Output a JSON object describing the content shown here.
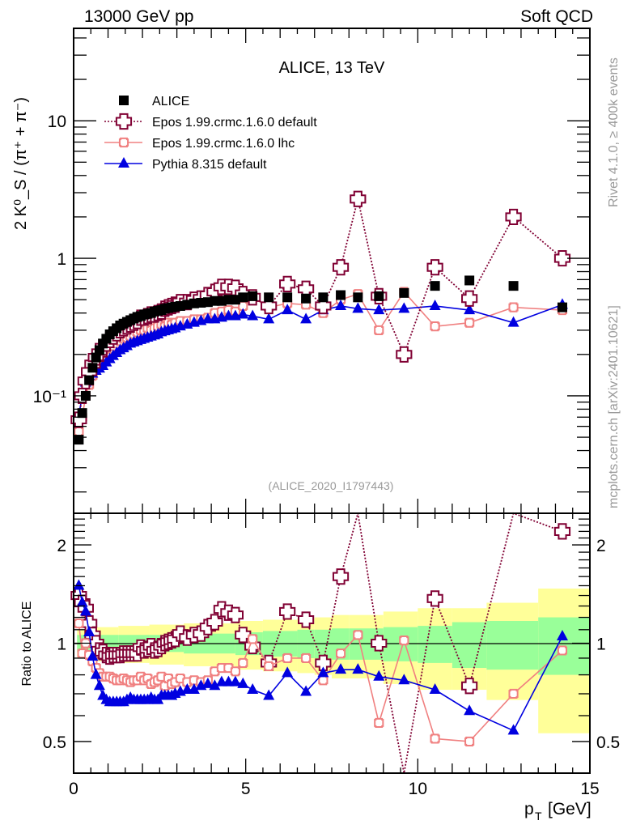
{
  "header": {
    "left": "13000 GeV pp",
    "right": "Soft QCD"
  },
  "side_labels": {
    "rivet": "Rivet 4.1.0, ≥ 400k events",
    "mcplots": "mcplots.cern.ch [arXiv:2401.10621]"
  },
  "chart_data": [
    {
      "panel": "main",
      "type": "scatter",
      "title": "ALICE, 13 TeV",
      "analysis_label": "(ALICE_2020_I1797443)",
      "ylabel": "2 K⁰_S / (π⁺ + π⁻)",
      "xlabel": "",
      "yscale": "log",
      "xlim": [
        0,
        15
      ],
      "ylim": [
        0.014,
        47
      ],
      "yticks": [
        {
          "value": 10,
          "label": "10"
        },
        {
          "value": 1,
          "label": "1"
        },
        {
          "value": 0.1,
          "label": "10⁻¹"
        }
      ],
      "legend_position": "top-left",
      "x": [
        0.15,
        0.25,
        0.35,
        0.45,
        0.55,
        0.65,
        0.75,
        0.85,
        0.95,
        1.05,
        1.15,
        1.25,
        1.35,
        1.45,
        1.55,
        1.65,
        1.75,
        1.85,
        1.95,
        2.05,
        2.15,
        2.25,
        2.35,
        2.45,
        2.55,
        2.65,
        2.75,
        2.85,
        2.95,
        3.1,
        3.3,
        3.5,
        3.7,
        3.9,
        4.1,
        4.3,
        4.5,
        4.7,
        4.92,
        5.2,
        5.67,
        6.21,
        6.75,
        7.25,
        7.76,
        8.26,
        8.87,
        9.6,
        10.5,
        11.5,
        12.78,
        14.2
      ],
      "series": [
        {
          "name": "ALICE",
          "marker": "square",
          "color": "#000000",
          "values": [
            0.048,
            0.075,
            0.1,
            0.13,
            0.16,
            0.19,
            0.215,
            0.24,
            0.26,
            0.28,
            0.295,
            0.31,
            0.325,
            0.335,
            0.345,
            0.355,
            0.365,
            0.375,
            0.38,
            0.39,
            0.395,
            0.4,
            0.41,
            0.415,
            0.42,
            0.43,
            0.435,
            0.44,
            0.445,
            0.45,
            0.46,
            0.47,
            0.475,
            0.48,
            0.49,
            0.49,
            0.5,
            0.5,
            0.52,
            0.53,
            0.52,
            0.52,
            0.51,
            0.52,
            0.54,
            0.52,
            0.53,
            0.56,
            0.63,
            0.69,
            0.63,
            0.44
          ]
        },
        {
          "name": "Epos 1.99.crmc.1.6.0 default",
          "marker": "open-cross",
          "line": "dotted",
          "color": "#800033",
          "values": [
            0.067,
            0.1,
            0.128,
            0.15,
            0.17,
            0.19,
            0.205,
            0.225,
            0.24,
            0.255,
            0.27,
            0.285,
            0.3,
            0.31,
            0.32,
            0.33,
            0.34,
            0.35,
            0.37,
            0.37,
            0.38,
            0.39,
            0.39,
            0.4,
            0.41,
            0.43,
            0.44,
            0.45,
            0.46,
            0.48,
            0.48,
            0.5,
            0.51,
            0.54,
            0.57,
            0.62,
            0.62,
            0.61,
            0.55,
            0.52,
            0.45,
            0.65,
            0.6,
            0.45,
            0.86,
            2.7,
            0.53,
            0.2,
            0.86,
            0.51,
            2.0,
            1.0
          ]
        },
        {
          "name": "Epos 1.99.crmc.1.6.0 lhc",
          "marker": "open-cross-small",
          "line": "solid",
          "color": "#f08080",
          "values": [
            0.055,
            0.07,
            0.1,
            0.12,
            0.14,
            0.16,
            0.175,
            0.19,
            0.205,
            0.22,
            0.23,
            0.24,
            0.25,
            0.26,
            0.265,
            0.27,
            0.28,
            0.29,
            0.3,
            0.3,
            0.31,
            0.3,
            0.31,
            0.32,
            0.33,
            0.32,
            0.34,
            0.33,
            0.34,
            0.35,
            0.35,
            0.36,
            0.36,
            0.37,
            0.4,
            0.41,
            0.42,
            0.41,
            0.45,
            0.52,
            0.44,
            0.47,
            0.46,
            0.4,
            0.5,
            0.55,
            0.3,
            0.57,
            0.32,
            0.34,
            0.44,
            0.42
          ]
        },
        {
          "name": "Pythia 8.315 default",
          "marker": "triangle",
          "line": "solid",
          "color": "#0000e0",
          "values": [
            0.072,
            0.1,
            0.125,
            0.14,
            0.145,
            0.152,
            0.158,
            0.165,
            0.175,
            0.185,
            0.195,
            0.205,
            0.215,
            0.222,
            0.23,
            0.24,
            0.245,
            0.25,
            0.255,
            0.26,
            0.265,
            0.27,
            0.275,
            0.28,
            0.29,
            0.295,
            0.3,
            0.305,
            0.31,
            0.32,
            0.33,
            0.34,
            0.35,
            0.36,
            0.36,
            0.37,
            0.38,
            0.38,
            0.39,
            0.38,
            0.36,
            0.42,
            0.36,
            0.42,
            0.45,
            0.43,
            0.42,
            0.43,
            0.45,
            0.42,
            0.34,
            0.46
          ]
        }
      ]
    },
    {
      "panel": "ratio",
      "type": "scatter",
      "ylabel": "Ratio to ALICE",
      "xlabel": "p_T [GeV]",
      "yscale": "log",
      "xlim": [
        0,
        15
      ],
      "ylim": [
        0.4,
        2.5
      ],
      "yticks": [
        {
          "value": 2,
          "label": "2"
        },
        {
          "value": 1,
          "label": "1"
        },
        {
          "value": 0.5,
          "label": "0.5"
        }
      ],
      "xticks": [
        {
          "value": 0,
          "label": "0"
        },
        {
          "value": 5,
          "label": "5"
        },
        {
          "value": 10,
          "label": "10"
        },
        {
          "value": 15,
          "label": "15"
        }
      ],
      "reference_line": 1,
      "bands": {
        "inner_color": "#99ff99",
        "outer_color": "#ffff99",
        "edges": [
          0.1,
          0.4,
          1.3,
          2.2,
          3.2,
          4.7,
          5.5,
          6.5,
          7.0,
          7.5,
          8.0,
          9.0,
          10.0,
          11.0,
          12.0,
          13.5,
          15.0
        ],
        "inner": [
          0.06,
          0.06,
          0.06,
          0.06,
          0.07,
          0.08,
          0.09,
          0.1,
          0.1,
          0.11,
          0.11,
          0.12,
          0.13,
          0.16,
          0.17,
          0.2
        ],
        "outer": [
          0.1,
          0.12,
          0.13,
          0.14,
          0.15,
          0.17,
          0.18,
          0.19,
          0.2,
          0.22,
          0.22,
          0.25,
          0.28,
          0.28,
          0.33,
          0.47
        ]
      },
      "series": [
        {
          "name": "Epos 1.99.crmc.1.6.0 default",
          "values": [
            1.4,
            1.33,
            1.28,
            1.15,
            1.06,
            1.0,
            0.95,
            0.94,
            0.92,
            0.91,
            0.92,
            0.92,
            0.92,
            0.93,
            0.93,
            0.93,
            0.93,
            0.93,
            0.97,
            0.95,
            0.96,
            0.98,
            0.95,
            0.96,
            0.98,
            1.0,
            1.01,
            1.02,
            1.03,
            1.07,
            1.04,
            1.06,
            1.07,
            1.12,
            1.16,
            1.27,
            1.24,
            1.22,
            1.06,
            0.98,
            0.87,
            1.25,
            1.18,
            0.87,
            1.6,
            5.2,
            1.0,
            0.36,
            1.37,
            0.74,
            3.2,
            2.2
          ]
        },
        {
          "name": "Epos 1.99.crmc.1.6.0 lhc",
          "values": [
            1.15,
            0.93,
            1.0,
            0.92,
            0.88,
            0.84,
            0.81,
            0.79,
            0.79,
            0.79,
            0.78,
            0.77,
            0.77,
            0.78,
            0.77,
            0.76,
            0.77,
            0.77,
            0.79,
            0.77,
            0.78,
            0.75,
            0.76,
            0.77,
            0.79,
            0.74,
            0.78,
            0.75,
            0.76,
            0.78,
            0.76,
            0.77,
            0.76,
            0.77,
            0.82,
            0.84,
            0.84,
            0.82,
            0.87,
            1.03,
            0.85,
            0.9,
            0.9,
            0.77,
            0.93,
            1.06,
            0.57,
            1.02,
            0.51,
            0.5,
            0.7,
            0.95
          ]
        },
        {
          "name": "Pythia 8.315 default",
          "values": [
            1.5,
            1.33,
            1.25,
            1.08,
            0.91,
            0.8,
            0.74,
            0.69,
            0.67,
            0.66,
            0.66,
            0.66,
            0.66,
            0.66,
            0.67,
            0.68,
            0.67,
            0.67,
            0.67,
            0.67,
            0.67,
            0.68,
            0.67,
            0.67,
            0.69,
            0.69,
            0.69,
            0.69,
            0.7,
            0.71,
            0.72,
            0.72,
            0.74,
            0.75,
            0.74,
            0.76,
            0.76,
            0.76,
            0.75,
            0.72,
            0.69,
            0.81,
            0.71,
            0.81,
            0.83,
            0.83,
            0.79,
            0.77,
            0.72,
            0.62,
            0.54,
            1.05
          ]
        }
      ]
    }
  ]
}
